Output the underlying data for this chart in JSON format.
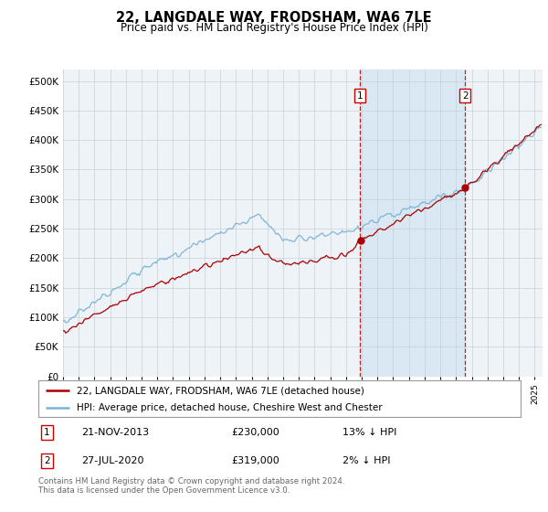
{
  "title": "22, LANGDALE WAY, FRODSHAM, WA6 7LE",
  "subtitle": "Price paid vs. HM Land Registry's House Price Index (HPI)",
  "ylabel_ticks": [
    "£0",
    "£50K",
    "£100K",
    "£150K",
    "£200K",
    "£250K",
    "£300K",
    "£350K",
    "£400K",
    "£450K",
    "£500K"
  ],
  "ytick_values": [
    0,
    50000,
    100000,
    150000,
    200000,
    250000,
    300000,
    350000,
    400000,
    450000,
    500000
  ],
  "ylim": [
    0,
    520000
  ],
  "xlim_start": 1995.0,
  "xlim_end": 2025.5,
  "hpi_color": "#7ab3d4",
  "price_color": "#aa0000",
  "shade_color": "#ddeeff",
  "sale1_date": 2013.896,
  "sale1_price": 230000,
  "sale2_date": 2020.574,
  "sale2_price": 319000,
  "legend_line1": "22, LANGDALE WAY, FRODSHAM, WA6 7LE (detached house)",
  "legend_line2": "HPI: Average price, detached house, Cheshire West and Chester",
  "table_row1": [
    "1",
    "21-NOV-2013",
    "£230,000",
    "13% ↓ HPI"
  ],
  "table_row2": [
    "2",
    "27-JUL-2020",
    "£319,000",
    "2% ↓ HPI"
  ],
  "footnote": "Contains HM Land Registry data © Crown copyright and database right 2024.\nThis data is licensed under the Open Government Licence v3.0.",
  "bg_color": "#ffffff",
  "plot_bg_color": "#eef3f8",
  "grid_color": "#c8d0d8"
}
